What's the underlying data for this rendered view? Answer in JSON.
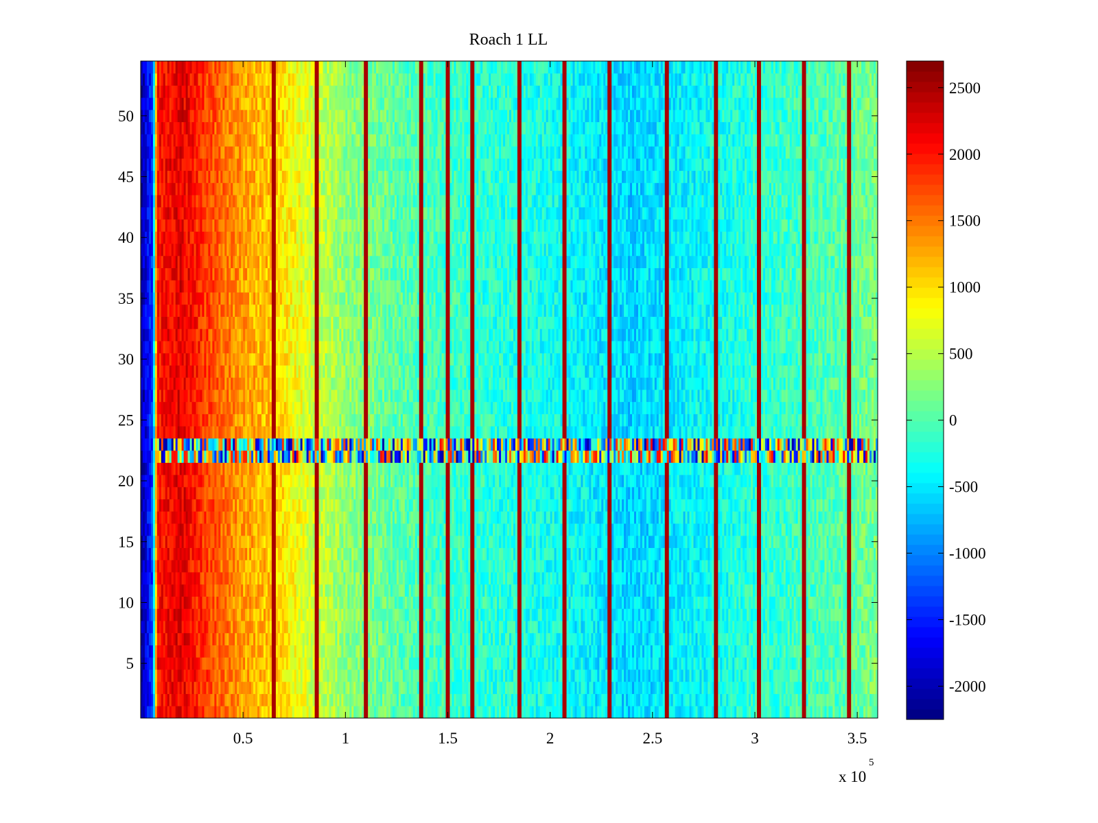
{
  "chart_data": {
    "type": "heatmap",
    "title": "Roach 1 LL",
    "xlabel": "",
    "ylabel": "",
    "x_exponent_label": "x 10",
    "x_exponent_power": "5",
    "xlim": [
      0,
      360000
    ],
    "ylim": [
      0.5,
      54.5
    ],
    "xticks": [
      0.5,
      1,
      1.5,
      2,
      2.5,
      3,
      3.5
    ],
    "xtick_labels": [
      "0.5",
      "1",
      "1.5",
      "2",
      "2.5",
      "3",
      "3.5"
    ],
    "yticks": [
      5,
      10,
      15,
      20,
      25,
      30,
      35,
      40,
      45,
      50
    ],
    "ytick_labels": [
      "5",
      "10",
      "15",
      "20",
      "25",
      "30",
      "35",
      "40",
      "45",
      "50"
    ],
    "colormap": "jet",
    "clim": [
      -2250,
      2700
    ],
    "colorbar_ticks": [
      2500,
      2000,
      1500,
      1000,
      500,
      0,
      -500,
      -1000,
      -1500,
      -2000
    ],
    "colorbar_tick_labels": [
      "2500",
      "2000",
      "1500",
      "1000",
      "500",
      "0",
      "-500",
      "-1000",
      "-1500",
      "-2000"
    ],
    "rows": 54,
    "noisy_rows": [
      22,
      23
    ],
    "baseline_profile": [
      {
        "x": 0,
        "value": -2100
      },
      {
        "x": 6000,
        "value": -1300
      },
      {
        "x": 8000,
        "value": 2000
      },
      {
        "x": 20000,
        "value": 2200
      },
      {
        "x": 35000,
        "value": 1700
      },
      {
        "x": 50000,
        "value": 1300
      },
      {
        "x": 65000,
        "value": 1100
      },
      {
        "x": 80000,
        "value": 700
      },
      {
        "x": 100000,
        "value": 300
      },
      {
        "x": 130000,
        "value": 0
      },
      {
        "x": 170000,
        "value": -200
      },
      {
        "x": 200000,
        "value": -300
      },
      {
        "x": 240000,
        "value": -600
      },
      {
        "x": 270000,
        "value": -400
      },
      {
        "x": 300000,
        "value": -200
      },
      {
        "x": 340000,
        "value": 0
      },
      {
        "x": 360000,
        "value": 200
      }
    ],
    "spike_columns_x": [
      65000,
      86000,
      110000,
      137000,
      150000,
      162000,
      185000,
      207000,
      229000,
      257000,
      281000,
      302000,
      324000,
      346000
    ],
    "colors": {
      "axes": "#000000",
      "background": "#ffffff"
    }
  }
}
